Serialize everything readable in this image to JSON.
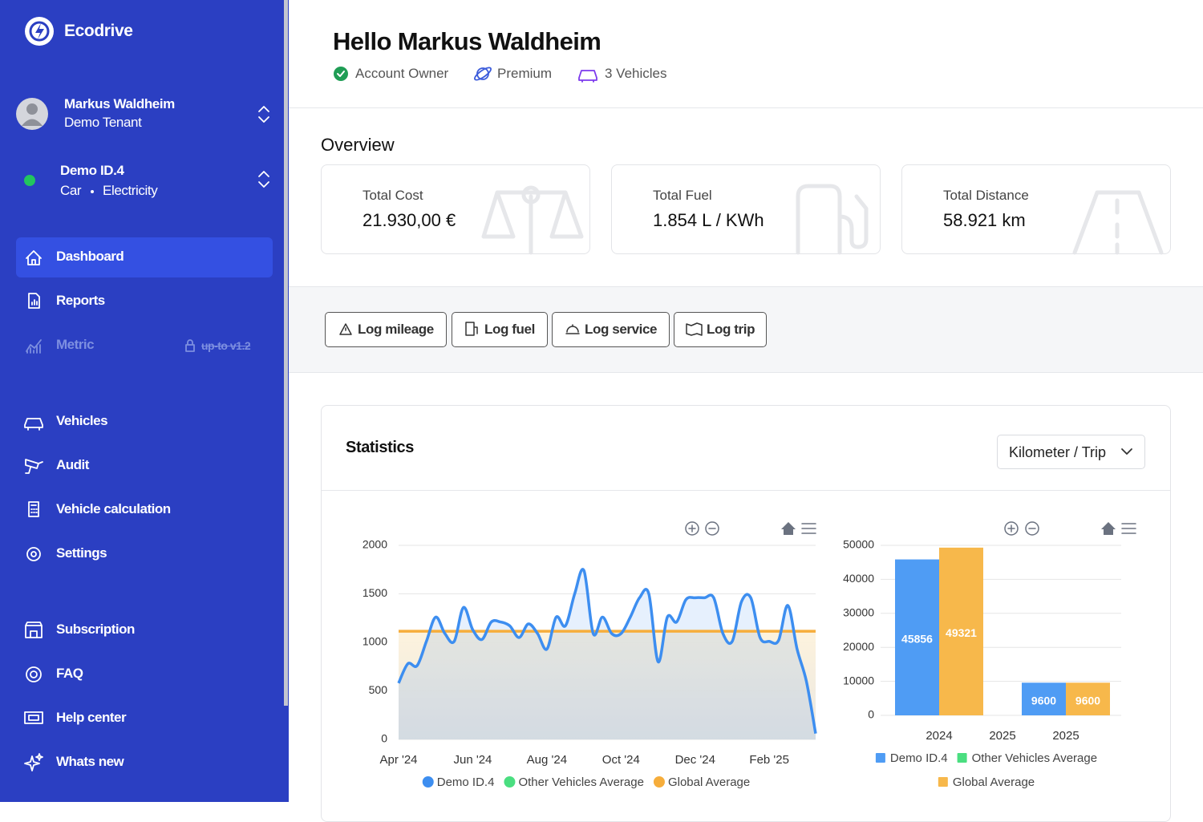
{
  "sidebar": {
    "brand": "Ecodrive",
    "user": {
      "name": "Markus Waldheim",
      "tenant": "Demo Tenant"
    },
    "vehicle": {
      "name": "Demo ID.4",
      "type": "Car",
      "fuel": "Electricity"
    },
    "nav": [
      {
        "label": "Dashboard"
      },
      {
        "label": "Reports"
      },
      {
        "label": "Metric",
        "badge": "up-to v1.2"
      },
      {
        "label": "Vehicles"
      },
      {
        "label": "Audit"
      },
      {
        "label": "Vehicle calculation"
      },
      {
        "label": "Settings"
      },
      {
        "label": "Subscription"
      },
      {
        "label": "FAQ"
      },
      {
        "label": "Help center"
      },
      {
        "label": "Whats new"
      }
    ]
  },
  "header": {
    "greeting": "Hello Markus Waldheim",
    "badges": [
      "Account Owner",
      "Premium",
      "3 Vehicles"
    ]
  },
  "overview": {
    "title": "Overview",
    "cards": [
      {
        "label": "Total Cost",
        "value": "21.930,00 €"
      },
      {
        "label": "Total Fuel",
        "value": "1.854 L / KWh"
      },
      {
        "label": "Total Distance",
        "value": "58.921 km"
      }
    ]
  },
  "actions": [
    "Log mileage",
    "Log fuel",
    "Log service",
    "Log trip"
  ],
  "statistics": {
    "title": "Statistics",
    "select": "Kilometer / Trip"
  },
  "chart_data": [
    {
      "type": "line",
      "categories": [
        "Apr '24",
        null,
        null,
        null,
        null,
        null,
        null,
        null,
        "Jun '24",
        null,
        null,
        null,
        null,
        null,
        null,
        null,
        "Aug '24",
        null,
        null,
        null,
        null,
        null,
        null,
        null,
        "Oct '24",
        null,
        null,
        null,
        null,
        null,
        null,
        null,
        "Dec '24",
        null,
        null,
        null,
        null,
        null,
        null,
        null,
        "Feb '25",
        null,
        null,
        null,
        null,
        null
      ],
      "series": [
        {
          "name": "Demo ID.4",
          "color": "#3d8ef0",
          "values": [
            580,
            780,
            760,
            1010,
            1260,
            1090,
            1010,
            1360,
            1130,
            1030,
            1210,
            1210,
            1170,
            1050,
            1190,
            1090,
            930,
            1260,
            1170,
            1500,
            1740,
            1090,
            1260,
            1090,
            1090,
            1260,
            1460,
            1500,
            800,
            1260,
            1210,
            1440,
            1460,
            1460,
            1460,
            1090,
            1010,
            1420,
            1460,
            1050,
            1010,
            1020,
            1380,
            930,
            600,
            60
          ]
        },
        {
          "name": "Other Vehicles Average",
          "color": "#4ade80",
          "values": [
            null,
            null,
            null,
            null,
            null,
            null,
            null,
            null,
            null,
            null,
            null,
            null,
            null,
            null,
            null,
            null,
            null,
            null,
            null,
            null,
            null,
            null,
            null,
            null,
            null,
            null,
            null,
            null,
            null,
            null,
            null,
            null,
            null,
            null,
            null,
            null,
            null,
            null,
            null,
            null,
            null,
            null,
            null,
            null,
            null,
            null
          ]
        },
        {
          "name": "Global Average",
          "color": "#f6ad3b",
          "values": [
            1115,
            1115,
            1115,
            1115,
            1115,
            1115,
            1115,
            1115,
            1115,
            1115,
            1115,
            1115,
            1115,
            1115,
            1115,
            1115,
            1115,
            1115,
            1115,
            1115,
            1115,
            1115,
            1115,
            1115,
            1115,
            1115,
            1115,
            1115,
            1115,
            1115,
            1115,
            1115,
            1115,
            1115,
            1115,
            1115,
            1115,
            1115,
            1115,
            1115,
            1115,
            1115,
            1115,
            1115,
            1115,
            1115
          ]
        }
      ],
      "ylim": [
        0,
        2000
      ],
      "yticks": [
        0,
        500,
        1000,
        1500,
        2000
      ],
      "grid": true,
      "legend": "bottom"
    },
    {
      "type": "bar",
      "categories": [
        "2024",
        "2025",
        "2025"
      ],
      "series": [
        {
          "name": "Demo ID.4",
          "color": "#4f9cf4",
          "values": [
            45856,
            null,
            9600
          ]
        },
        {
          "name": "Other Vehicles Average",
          "color": "#4ade80",
          "values": [
            null,
            null,
            null
          ]
        },
        {
          "name": "Global Average",
          "color": "#f7b84b",
          "values": [
            49321,
            null,
            9600
          ]
        }
      ],
      "ylim": [
        0,
        50000
      ],
      "yticks": [
        0,
        10000,
        20000,
        30000,
        40000,
        50000
      ],
      "grid": true,
      "data_labels": true,
      "legend": "bottom"
    }
  ]
}
